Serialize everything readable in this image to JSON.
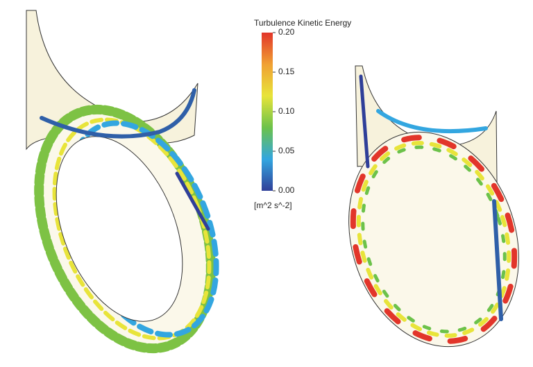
{
  "colorbar": {
    "title": "Turbulence Kinetic Energy",
    "unit": "[m^2 s^-2]",
    "range": [
      0,
      0.2
    ],
    "ticks": [
      {
        "value": 0,
        "label": "0.00"
      },
      {
        "value": 0.05,
        "label": "0.05"
      },
      {
        "value": 0.1,
        "label": "0.10"
      },
      {
        "value": 0.15,
        "label": "0.15"
      },
      {
        "value": 0.2,
        "label": "0.20"
      }
    ],
    "colors": [
      "#2f3f99",
      "#33a6e0",
      "#6cc24a",
      "#e8e43a",
      "#f0a033",
      "#e2352a"
    ]
  }
}
